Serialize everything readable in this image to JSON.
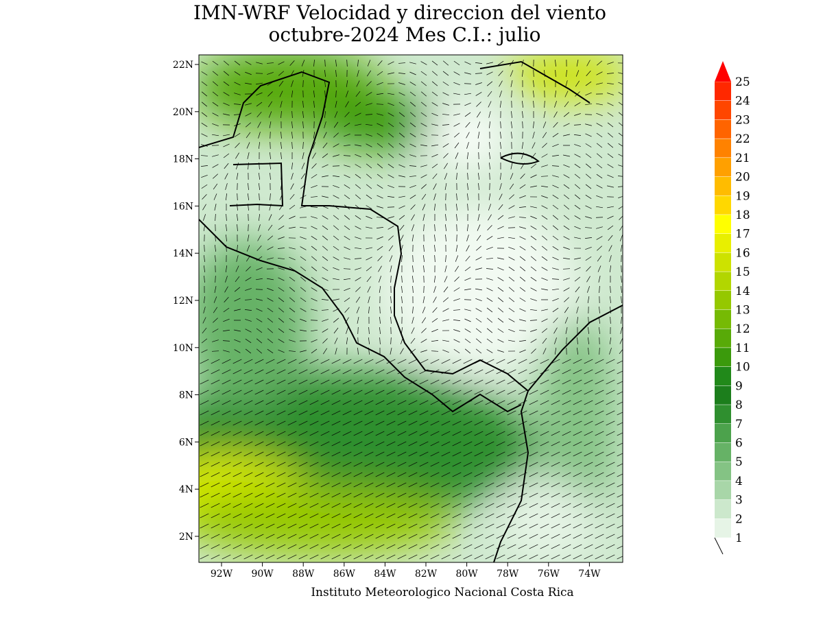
{
  "title": [
    "IMN-WRF Velocidad y direccion del viento",
    "octubre-2024 Mes C.I.: julio"
  ],
  "map": {
    "lat_labels": [
      "22N",
      "20N",
      "18N",
      "16N",
      "14N",
      "12N",
      "10N",
      "8N",
      "6N",
      "4N",
      "2N"
    ],
    "lon_labels": [
      "92W",
      "90W",
      "88W",
      "86W",
      "84W",
      "82W",
      "80W",
      "78W",
      "76W",
      "74W"
    ]
  },
  "colorbar": {
    "levels": [
      1,
      2,
      3,
      4,
      5,
      6,
      7,
      8,
      9,
      10,
      11,
      12,
      13,
      14,
      15,
      16,
      17,
      18,
      19,
      20,
      21,
      22,
      23,
      24,
      25
    ],
    "colors": [
      "#e6f4e6",
      "#cce8cc",
      "#a8d6a8",
      "#84c384",
      "#66b266",
      "#4ca24c",
      "#2f8f2f",
      "#1c7e1c",
      "#21891a",
      "#3b9a0c",
      "#58aa08",
      "#76ba04",
      "#95c800",
      "#b2d600",
      "#cde200",
      "#e8ef00",
      "#ffff00",
      "#ffd800",
      "#ffbc00",
      "#ffa000",
      "#ff8200",
      "#ff6400",
      "#ff4600",
      "#ff2800",
      "#ff0000"
    ]
  },
  "footer": "Instituto Meteorologico Nacional Costa Rica"
}
